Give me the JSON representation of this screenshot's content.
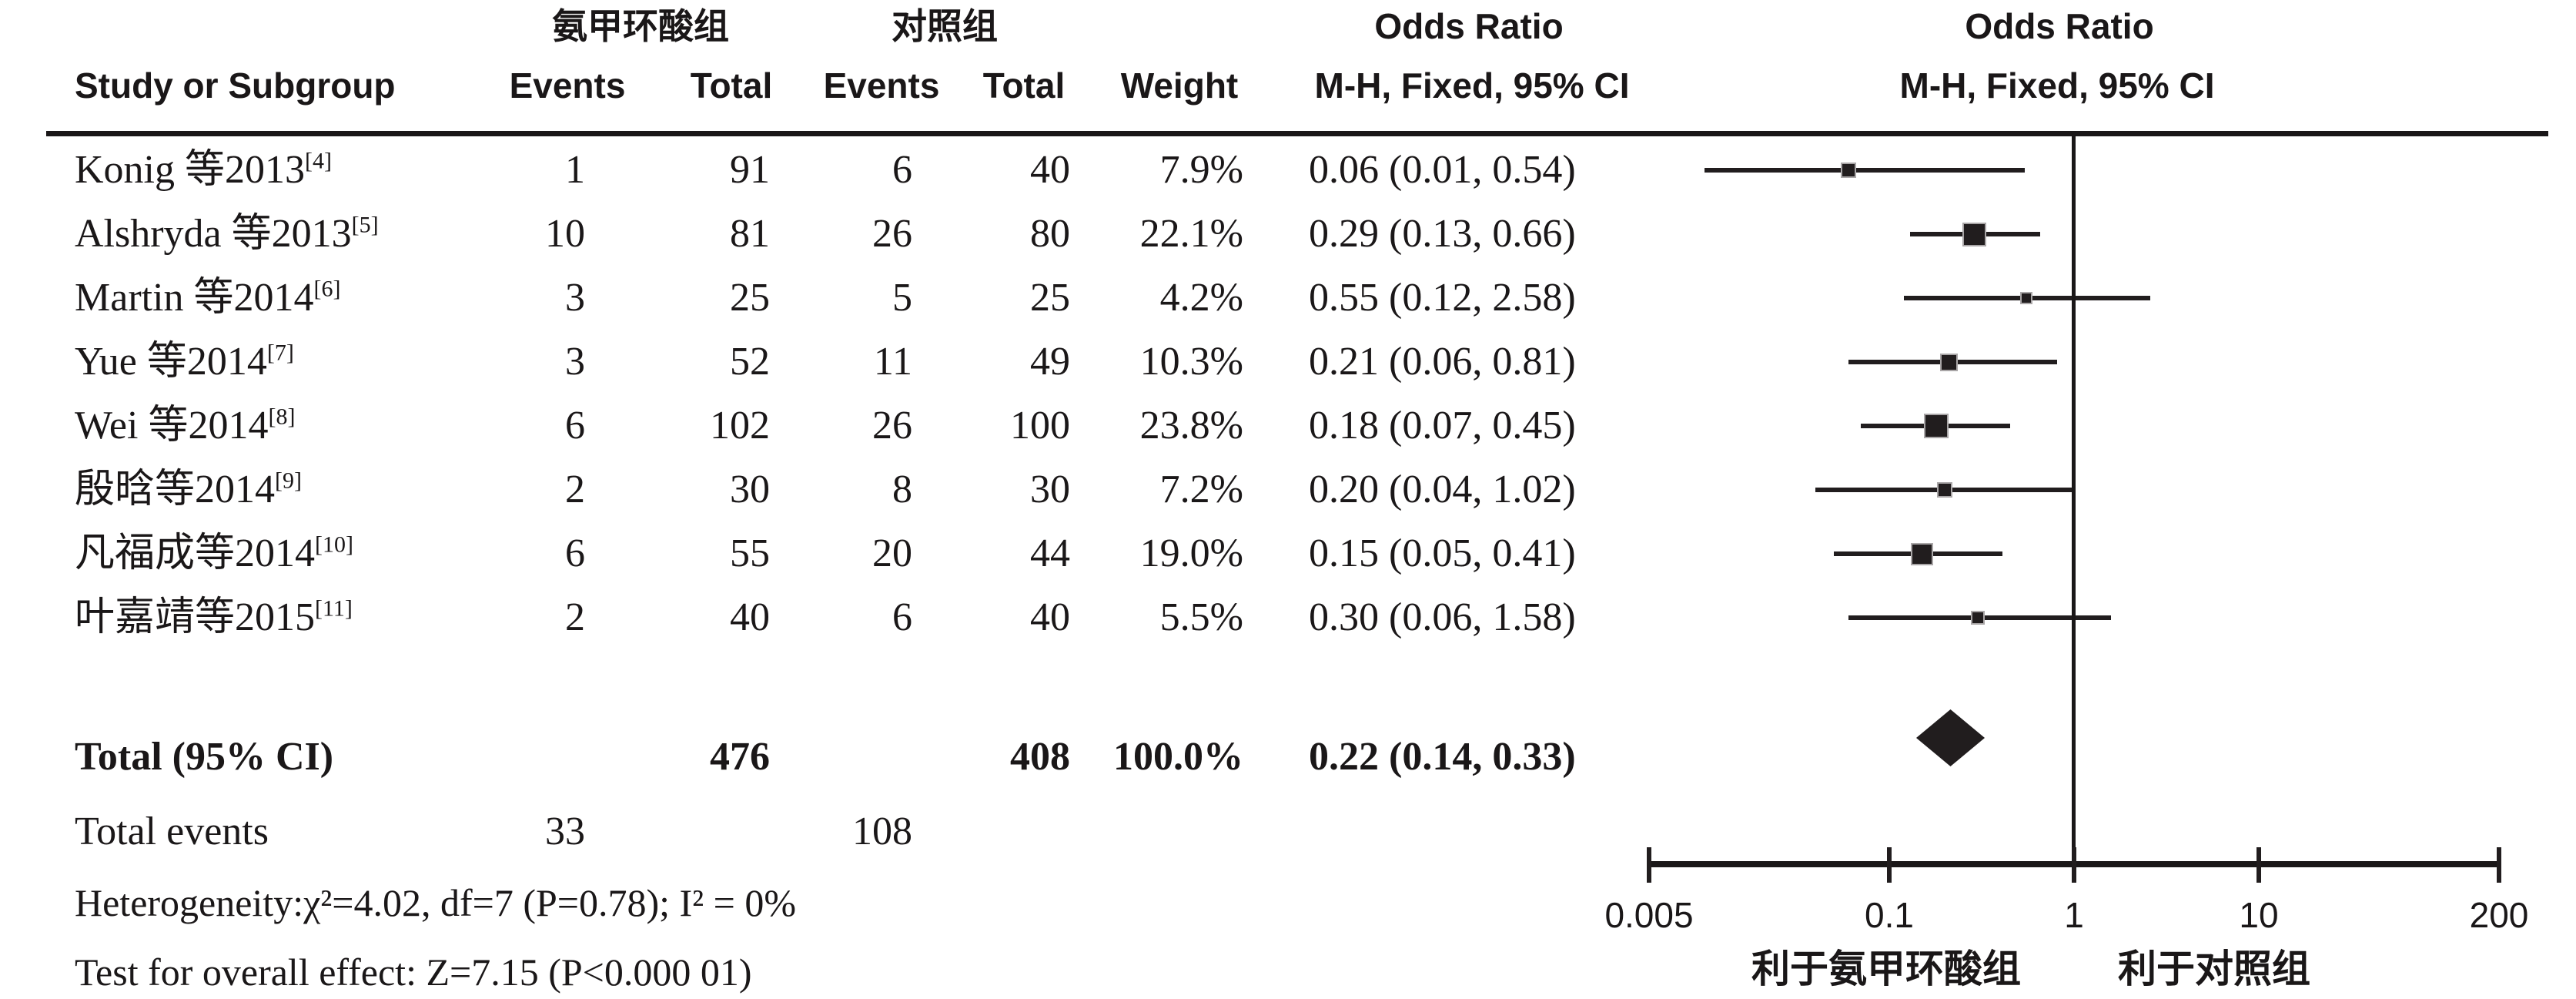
{
  "header": {
    "group1_label": "氨甲环酸组",
    "group2_label": "对照组",
    "or_text_title": "Odds Ratio",
    "or_text_subtitle": "M-H, Fixed, 95% CI",
    "or_plot_title": "Odds Ratio",
    "or_plot_subtitle": "M-H, Fixed, 95% CI",
    "study_col": "Study or Subgroup",
    "events_col1": "Events",
    "total_col1": "Total",
    "events_col2": "Events",
    "total_col2": "Total",
    "weight_col": "Weight"
  },
  "chart_data": {
    "type": "scatter",
    "subtype": "forest-plot-meta-analysis",
    "effect_measure": "Odds Ratio, M-H, Fixed, 95% CI",
    "x_scale": "log",
    "x_range": [
      0.005,
      200
    ],
    "x_ticks": [
      "0.005",
      "0.1",
      "1",
      "10",
      "200"
    ],
    "null_line": 1,
    "studies": [
      {
        "label": "Konig 等2013",
        "ref": "[4]",
        "events1": "1",
        "total1": "91",
        "events2": "6",
        "total2": "40",
        "weight": "7.9%",
        "or_ci_text": "0.06 (0.01, 0.54)",
        "or": 0.06,
        "ci_low": 0.01,
        "ci_high": 0.54,
        "weight_pct": 7.9
      },
      {
        "label": "Alshryda 等2013",
        "ref": "[5]",
        "events1": "10",
        "total1": "81",
        "events2": "26",
        "total2": "80",
        "weight": "22.1%",
        "or_ci_text": "0.29 (0.13, 0.66)",
        "or": 0.29,
        "ci_low": 0.13,
        "ci_high": 0.66,
        "weight_pct": 22.1
      },
      {
        "label": "Martin 等2014",
        "ref": "[6]",
        "events1": "3",
        "total1": "25",
        "events2": "5",
        "total2": "25",
        "weight": "4.2%",
        "or_ci_text": "0.55 (0.12, 2.58)",
        "or": 0.55,
        "ci_low": 0.12,
        "ci_high": 2.58,
        "weight_pct": 4.2
      },
      {
        "label": "Yue 等2014",
        "ref": "[7]",
        "events1": "3",
        "total1": "52",
        "events2": "11",
        "total2": "49",
        "weight": "10.3%",
        "or_ci_text": "0.21 (0.06, 0.81)",
        "or": 0.21,
        "ci_low": 0.06,
        "ci_high": 0.81,
        "weight_pct": 10.3
      },
      {
        "label": "Wei 等2014",
        "ref": "[8]",
        "events1": "6",
        "total1": "102",
        "events2": "26",
        "total2": "100",
        "weight": "23.8%",
        "or_ci_text": "0.18 (0.07, 0.45)",
        "or": 0.18,
        "ci_low": 0.07,
        "ci_high": 0.45,
        "weight_pct": 23.8
      },
      {
        "label": "殷晗等2014",
        "ref": "[9]",
        "events1": "2",
        "total1": "30",
        "events2": "8",
        "total2": "30",
        "weight": "7.2%",
        "or_ci_text": "0.20 (0.04, 1.02)",
        "or": 0.2,
        "ci_low": 0.04,
        "ci_high": 1.02,
        "weight_pct": 7.2
      },
      {
        "label": "凡福成等2014",
        "ref": "[10]",
        "events1": "6",
        "total1": "55",
        "events2": "20",
        "total2": "44",
        "weight": "19.0%",
        "or_ci_text": "0.15 (0.05, 0.41)",
        "or": 0.15,
        "ci_low": 0.05,
        "ci_high": 0.41,
        "weight_pct": 19.0
      },
      {
        "label": "叶嘉靖等2015",
        "ref": "[11]",
        "events1": "2",
        "total1": "40",
        "events2": "6",
        "total2": "40",
        "weight": "5.5%",
        "or_ci_text": "0.30 (0.06, 1.58)",
        "or": 0.3,
        "ci_low": 0.06,
        "ci_high": 1.58,
        "weight_pct": 5.5
      }
    ],
    "total": {
      "label": "Total (95% CI)",
      "total1": "476",
      "total2": "408",
      "weight": "100.0%",
      "or_ci_text": "0.22 (0.14, 0.33)",
      "or": 0.22,
      "ci_low": 0.14,
      "ci_high": 0.33
    },
    "total_events": {
      "label": "Total events",
      "events1": "33",
      "events2": "108"
    },
    "heterogeneity_text": "Heterogeneity:χ²=4.02, df=7 (P=0.78); I² = 0%",
    "overall_effect_text": "Test for overall effect: Z=7.15 (P<0.000 01)",
    "favors_left": "利于氨甲环酸组",
    "favors_right": "利于对照组"
  }
}
